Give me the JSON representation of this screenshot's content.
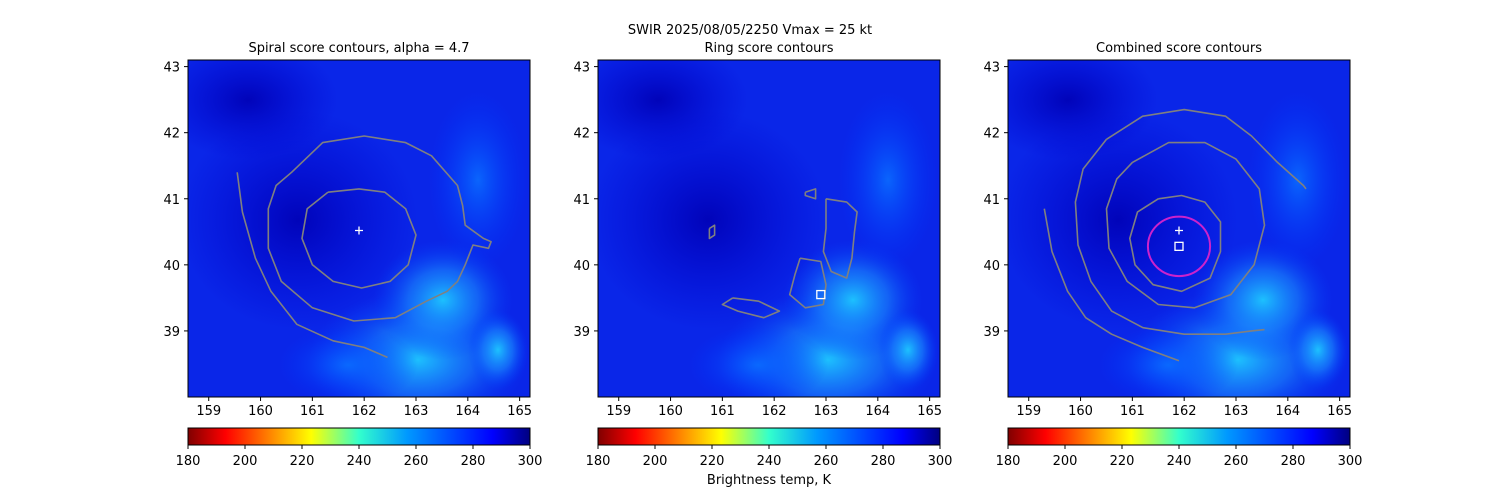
{
  "figure": {
    "suptitle": "SWIR  2025/08/05/2250    Vmax = 25 kt",
    "colorbar_label": "Brightness temp, K"
  },
  "colors": {
    "contour": "#808080",
    "marker": "#ffffff",
    "ring": "#cc22cc"
  },
  "chart_data": [
    {
      "type": "heatmap",
      "title": "Spiral score contours, alpha =  4.7",
      "xlim": [
        158.6,
        165.2
      ],
      "ylim": [
        38.0,
        43.1
      ],
      "xticks": [
        "159",
        "160",
        "161",
        "162",
        "163",
        "164",
        "165"
      ],
      "yticks": [
        "39",
        "40",
        "41",
        "42",
        "43"
      ],
      "colorbar": {
        "colormap": "jet_r",
        "range": [
          180,
          300
        ],
        "ticks": [
          "180",
          "200",
          "220",
          "240",
          "260",
          "280",
          "300"
        ]
      },
      "markers": [
        {
          "symbol": "plus",
          "x": 161.9,
          "y": 40.52
        }
      ],
      "contours": [
        {
          "name": "inner",
          "points": [
            [
              161.3,
              41.1
            ],
            [
              161.9,
              41.15
            ],
            [
              162.4,
              41.1
            ],
            [
              162.8,
              40.85
            ],
            [
              163.0,
              40.45
            ],
            [
              162.85,
              40.0
            ],
            [
              162.5,
              39.75
            ],
            [
              161.95,
              39.65
            ],
            [
              161.4,
              39.75
            ],
            [
              161.0,
              40.0
            ],
            [
              160.8,
              40.4
            ],
            [
              160.9,
              40.85
            ],
            [
              161.3,
              41.1
            ]
          ]
        },
        {
          "name": "outer",
          "points": [
            [
              160.6,
              41.4
            ],
            [
              161.2,
              41.85
            ],
            [
              162.0,
              41.95
            ],
            [
              162.8,
              41.85
            ],
            [
              163.3,
              41.65
            ],
            [
              163.8,
              41.2
            ],
            [
              163.9,
              40.9
            ],
            [
              163.95,
              40.6
            ],
            [
              164.3,
              40.4
            ],
            [
              164.45,
              40.35
            ],
            [
              164.4,
              40.25
            ],
            [
              164.1,
              40.3
            ],
            [
              163.95,
              40.0
            ],
            [
              163.8,
              39.75
            ],
            [
              163.6,
              39.6
            ],
            [
              163.2,
              39.45
            ],
            [
              162.6,
              39.2
            ],
            [
              161.8,
              39.15
            ],
            [
              161.0,
              39.35
            ],
            [
              160.4,
              39.75
            ],
            [
              160.15,
              40.25
            ],
            [
              160.15,
              40.85
            ],
            [
              160.3,
              41.2
            ],
            [
              160.6,
              41.4
            ]
          ]
        },
        {
          "name": "spiral",
          "points": [
            [
              159.55,
              41.4
            ],
            [
              159.65,
              40.8
            ],
            [
              159.9,
              40.1
            ],
            [
              160.2,
              39.6
            ],
            [
              160.7,
              39.1
            ],
            [
              161.4,
              38.85
            ],
            [
              162.0,
              38.75
            ],
            [
              162.45,
              38.6
            ]
          ]
        }
      ]
    },
    {
      "type": "heatmap",
      "title": "Ring score contours",
      "xlim": [
        158.6,
        165.2
      ],
      "ylim": [
        38.0,
        43.1
      ],
      "xticks": [
        "159",
        "160",
        "161",
        "162",
        "163",
        "164",
        "165"
      ],
      "yticks": [
        "39",
        "40",
        "41",
        "42",
        "43"
      ],
      "colorbar": {
        "colormap": "jet_r",
        "range": [
          180,
          300
        ],
        "ticks": [
          "180",
          "200",
          "220",
          "240",
          "260",
          "280",
          "300"
        ]
      },
      "markers": [
        {
          "symbol": "square",
          "x": 162.9,
          "y": 39.55
        }
      ],
      "contours": [
        {
          "name": "ring-cluster-east",
          "points": [
            [
              163.0,
              41.0
            ],
            [
              163.4,
              40.95
            ],
            [
              163.6,
              40.8
            ],
            [
              163.55,
              40.5
            ],
            [
              163.5,
              40.1
            ],
            [
              163.4,
              39.8
            ],
            [
              163.1,
              39.9
            ],
            [
              162.95,
              40.2
            ],
            [
              163.0,
              40.55
            ],
            [
              163.0,
              41.0
            ]
          ]
        },
        {
          "name": "ring-cluster-south",
          "points": [
            [
              162.5,
              40.1
            ],
            [
              162.9,
              40.05
            ],
            [
              163.0,
              39.7
            ],
            [
              162.95,
              39.4
            ],
            [
              162.6,
              39.35
            ],
            [
              162.3,
              39.55
            ],
            [
              162.4,
              39.85
            ],
            [
              162.5,
              40.1
            ]
          ]
        },
        {
          "name": "ring-cluster-west",
          "points": [
            [
              161.2,
              39.5
            ],
            [
              161.7,
              39.45
            ],
            [
              162.1,
              39.3
            ],
            [
              161.8,
              39.2
            ],
            [
              161.3,
              39.3
            ],
            [
              161.0,
              39.4
            ],
            [
              161.2,
              39.5
            ]
          ]
        },
        {
          "name": "ring-fleck-nw",
          "points": [
            [
              160.75,
              40.55
            ],
            [
              160.85,
              40.6
            ],
            [
              160.85,
              40.45
            ],
            [
              160.75,
              40.4
            ],
            [
              160.75,
              40.55
            ]
          ]
        },
        {
          "name": "ring-fleck-n",
          "points": [
            [
              162.6,
              41.1
            ],
            [
              162.8,
              41.15
            ],
            [
              162.8,
              41.0
            ],
            [
              162.6,
              41.05
            ],
            [
              162.6,
              41.1
            ]
          ]
        }
      ]
    },
    {
      "type": "heatmap",
      "title": "Combined score contours",
      "xlim": [
        158.6,
        165.2
      ],
      "ylim": [
        38.0,
        43.1
      ],
      "xticks": [
        "159",
        "160",
        "161",
        "162",
        "163",
        "164",
        "165"
      ],
      "yticks": [
        "39",
        "40",
        "41",
        "42",
        "43"
      ],
      "colorbar": {
        "colormap": "jet_r",
        "range": [
          180,
          300
        ],
        "ticks": [
          "180",
          "200",
          "220",
          "240",
          "260",
          "280",
          "300"
        ]
      },
      "markers": [
        {
          "symbol": "plus",
          "x": 161.9,
          "y": 40.52
        },
        {
          "symbol": "square",
          "x": 161.9,
          "y": 40.28
        }
      ],
      "ring": {
        "cx": 161.9,
        "cy": 40.28,
        "rx": 0.6,
        "ry": 0.45
      },
      "contours": [
        {
          "name": "inner",
          "points": [
            [
              161.5,
              41.0
            ],
            [
              161.95,
              41.05
            ],
            [
              162.4,
              40.95
            ],
            [
              162.7,
              40.65
            ],
            [
              162.7,
              40.2
            ],
            [
              162.5,
              39.8
            ],
            [
              161.95,
              39.6
            ],
            [
              161.4,
              39.7
            ],
            [
              161.05,
              40.0
            ],
            [
              160.95,
              40.4
            ],
            [
              161.1,
              40.8
            ],
            [
              161.5,
              41.0
            ]
          ]
        },
        {
          "name": "middle",
          "points": [
            [
              161.0,
              41.55
            ],
            [
              161.7,
              41.85
            ],
            [
              162.4,
              41.85
            ],
            [
              163.0,
              41.6
            ],
            [
              163.45,
              41.15
            ],
            [
              163.55,
              40.6
            ],
            [
              163.35,
              40.0
            ],
            [
              162.9,
              39.55
            ],
            [
              162.2,
              39.35
            ],
            [
              161.5,
              39.4
            ],
            [
              160.9,
              39.75
            ],
            [
              160.55,
              40.25
            ],
            [
              160.5,
              40.85
            ],
            [
              160.7,
              41.3
            ],
            [
              161.0,
              41.55
            ]
          ]
        },
        {
          "name": "outer",
          "points": [
            [
              160.5,
              41.9
            ],
            [
              161.2,
              42.25
            ],
            [
              162.0,
              42.35
            ],
            [
              162.8,
              42.25
            ],
            [
              163.3,
              41.95
            ],
            [
              163.8,
              41.55
            ],
            [
              164.3,
              41.2
            ],
            [
              164.35,
              41.15
            ]
          ]
        },
        {
          "name": "outer-arc",
          "points": [
            [
              160.5,
              41.9
            ],
            [
              160.05,
              41.45
            ],
            [
              159.9,
              40.95
            ],
            [
              159.95,
              40.3
            ],
            [
              160.2,
              39.75
            ],
            [
              160.6,
              39.3
            ],
            [
              161.2,
              39.05
            ],
            [
              162.0,
              38.95
            ],
            [
              162.8,
              38.95
            ],
            [
              163.3,
              39.0
            ],
            [
              163.55,
              39.02
            ]
          ]
        },
        {
          "name": "spiral",
          "points": [
            [
              159.3,
              40.85
            ],
            [
              159.45,
              40.2
            ],
            [
              159.75,
              39.6
            ],
            [
              160.1,
              39.2
            ],
            [
              160.6,
              38.95
            ],
            [
              161.2,
              38.75
            ],
            [
              161.9,
              38.55
            ]
          ]
        }
      ]
    }
  ]
}
